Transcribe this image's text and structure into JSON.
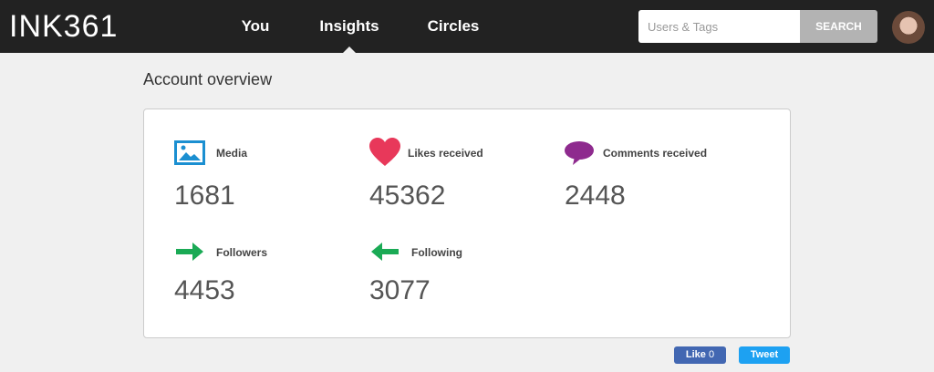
{
  "header": {
    "brand": "INK361",
    "nav": [
      "You",
      "Insights",
      "Circles"
    ],
    "search_placeholder": "Users & Tags",
    "search_button": "SEARCH"
  },
  "section_title": "Account overview",
  "stats": [
    {
      "label": "Media",
      "value": 1681
    },
    {
      "label": "Likes received",
      "value": 45362
    },
    {
      "label": "Comments received",
      "value": 2448
    },
    {
      "label": "Followers",
      "value": 4453
    },
    {
      "label": "Following",
      "value": 3077
    }
  ],
  "social": {
    "like": "Like",
    "like_count": 0,
    "tweet": "Tweet"
  }
}
